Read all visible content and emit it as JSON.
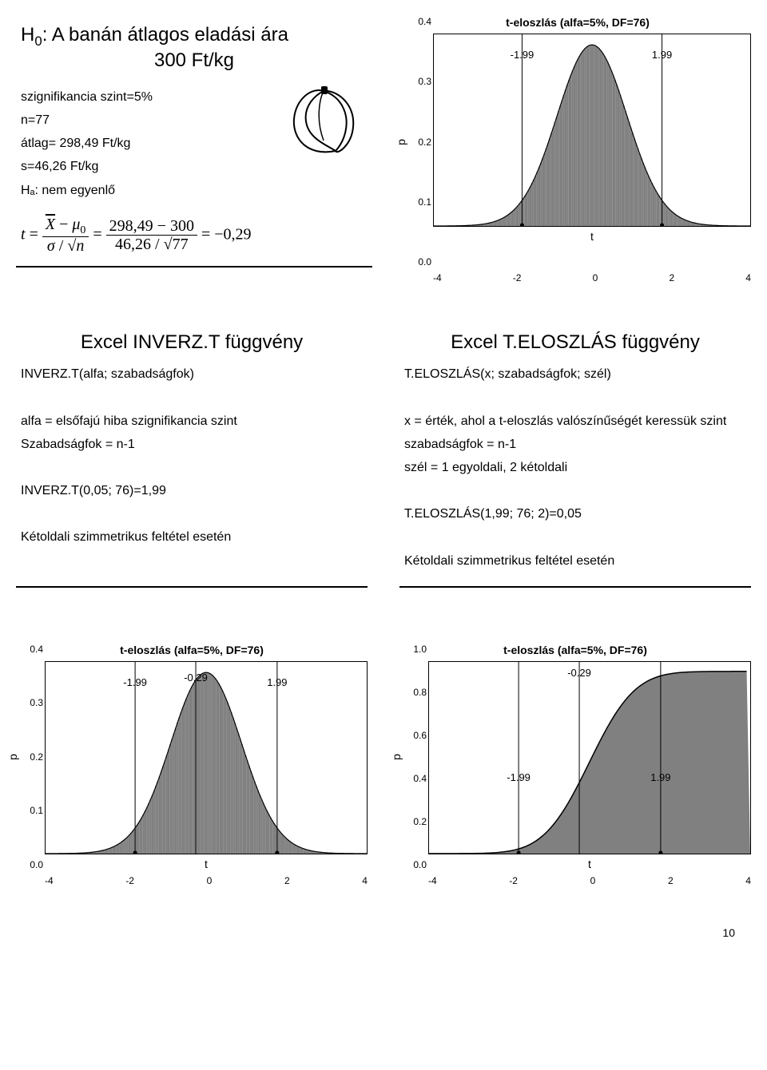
{
  "page_number": "10",
  "card_hypothesis": {
    "title_l1": "H",
    "title_sub": "0",
    "title_l1b": ": A banán átlagos eladási ára",
    "title_l2": "300 Ft/kg",
    "lines": [
      "szignifikancia szint=5%",
      "n=77",
      "átlag= 298,49 Ft/kg",
      "s=46,26 Ft/kg",
      "Hₐ: nem egyenlő"
    ],
    "formula_display": "t = (X̄ − μ₀) / (σ / √n) = (298,49 − 300) / (46,26 / √77) = −0,29"
  },
  "card_inverz": {
    "title": "Excel INVERZ.T függvény",
    "lines": [
      "INVERZ.T(alfa; szabadságfok)",
      "",
      "alfa = elsőfajú hiba szignifikancia szint",
      "Szabadságfok = n-1",
      "",
      "INVERZ.T(0,05; 76)=1,99",
      "",
      "Kétoldali szimmetrikus feltétel esetén"
    ]
  },
  "card_teloszlas": {
    "title": "Excel  T.ELOSZLÁS függvény",
    "lines": [
      "T.ELOSZLÁS(x; szabadságfok; szél)",
      "",
      "x = érték, ahol a t-eloszlás valószínűségét keressük szint",
      "szabadságfok = n-1",
      "szél  = 1 egyoldali, 2 kétoldali",
      "",
      "T.ELOSZLÁS(1,99; 76; 2)=0,05",
      "",
      "Kétoldali szimmetrikus feltétel esetén"
    ]
  },
  "dist_common": {
    "title": "t-eloszlás (alfa=5%, DF=76)",
    "x_label": "t",
    "y_label": "p",
    "x_ticks": [
      "-4",
      "-2",
      "0",
      "2",
      "4"
    ],
    "fill_color": "#808080",
    "line_color": "#000000",
    "bg_color": "#ffffff",
    "font_size_title": 14,
    "font_size_ticks": 12,
    "marker_neg": "-1.99",
    "marker_pos": "1.99",
    "crit_x_neg": -1.99,
    "crit_x_pos": 1.99,
    "xlim": [
      -4.5,
      4.5
    ]
  },
  "chart_top": {
    "y_ticks": [
      "0.4",
      "0.3",
      "0.2",
      "0.1",
      "0.0"
    ],
    "ylim": [
      0,
      0.42
    ]
  },
  "chart_bl": {
    "y_ticks": [
      "0.4",
      "0.3",
      "0.2",
      "0.1",
      "0.0"
    ],
    "ylim": [
      0,
      0.42
    ],
    "extra_marker": "-0.29",
    "extra_x": -0.29
  },
  "chart_br": {
    "type": "cdf",
    "y_ticks": [
      "1.0",
      "0.8",
      "0.6",
      "0.4",
      "0.2",
      "0.0"
    ],
    "ylim": [
      0,
      1.05
    ],
    "extra_marker": "-0.29",
    "extra_x": -0.29
  }
}
